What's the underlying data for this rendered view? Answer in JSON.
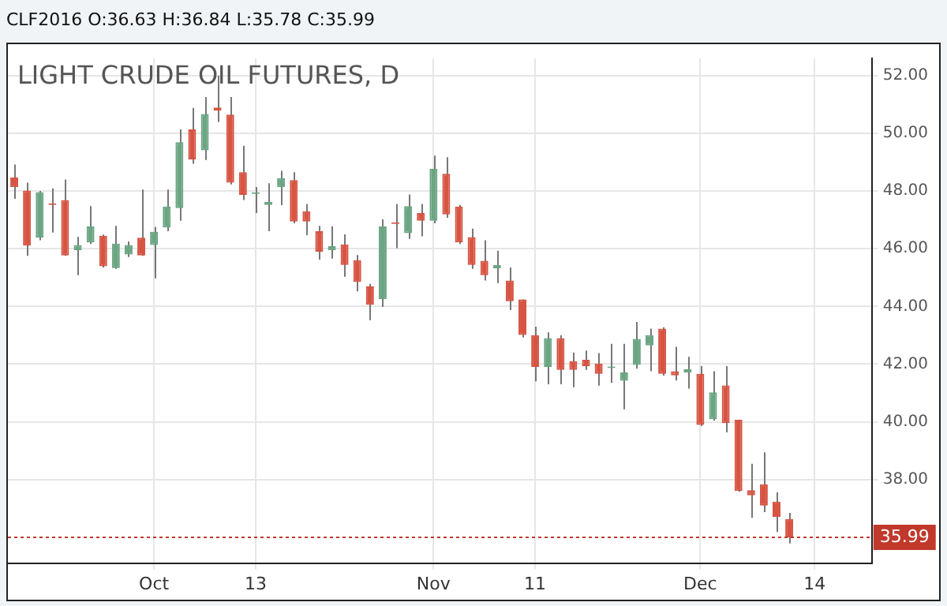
{
  "chart_data": {
    "type": "candlestick",
    "title": "LIGHT CRUDE OIL FUTURES, D",
    "subtitle": "CLF2016 O:36.63 H:36.84 L:35.78 C:35.99",
    "categories": [
      null,
      null,
      null,
      null,
      null,
      null,
      null,
      null,
      null,
      null,
      null,
      "Oct",
      null,
      null,
      null,
      null,
      null,
      null,
      null,
      "13",
      null,
      null,
      null,
      null,
      null,
      null,
      null,
      null,
      null,
      null,
      null,
      null,
      null,
      "Nov",
      null,
      null,
      null,
      null,
      null,
      null,
      null,
      "11",
      null,
      null,
      null,
      null,
      null,
      null,
      null,
      null,
      null,
      null,
      null,
      null,
      "Dec",
      null,
      null,
      null,
      null,
      null,
      null,
      null,
      null,
      "14",
      null,
      null,
      null,
      null
    ],
    "ohlc": [
      [
        48.47,
        48.92,
        47.73,
        48.13
      ],
      [
        48.02,
        48.29,
        45.75,
        46.11
      ],
      [
        46.38,
        48.0,
        46.29,
        47.96
      ],
      [
        47.57,
        48.09,
        46.56,
        47.52
      ],
      [
        47.69,
        48.4,
        45.75,
        45.77
      ],
      [
        45.95,
        46.41,
        45.08,
        46.13
      ],
      [
        46.22,
        47.48,
        46.16,
        46.77
      ],
      [
        46.45,
        46.49,
        45.35,
        45.39
      ],
      [
        45.33,
        46.79,
        45.3,
        46.18
      ],
      [
        45.8,
        46.25,
        45.71,
        46.13
      ],
      [
        46.38,
        48.05,
        45.75,
        45.77
      ],
      [
        46.13,
        46.76,
        44.97,
        46.59
      ],
      [
        46.74,
        48.05,
        46.61,
        47.46
      ],
      [
        47.41,
        50.14,
        46.97,
        49.69
      ],
      [
        50.14,
        50.88,
        48.95,
        49.1
      ],
      [
        49.41,
        51.26,
        49.08,
        50.67
      ],
      [
        50.9,
        52.0,
        50.4,
        50.79
      ],
      [
        50.65,
        51.26,
        48.23,
        48.29
      ],
      [
        48.65,
        49.57,
        47.69,
        47.87
      ],
      [
        47.9,
        48.14,
        47.24,
        47.93
      ],
      [
        47.52,
        48.27,
        46.61,
        47.62
      ],
      [
        48.13,
        48.7,
        47.51,
        48.45
      ],
      [
        48.38,
        48.65,
        46.88,
        46.94
      ],
      [
        47.3,
        47.55,
        46.47,
        46.94
      ],
      [
        46.61,
        46.79,
        45.62,
        45.9
      ],
      [
        45.95,
        46.78,
        45.66,
        46.09
      ],
      [
        46.15,
        46.5,
        45.03,
        45.44
      ],
      [
        45.6,
        45.78,
        44.52,
        44.85
      ],
      [
        44.69,
        44.78,
        43.52,
        44.06
      ],
      [
        44.25,
        47.02,
        43.98,
        46.77
      ],
      [
        46.91,
        47.55,
        46.02,
        46.86
      ],
      [
        46.54,
        47.88,
        46.34,
        47.48
      ],
      [
        47.24,
        47.55,
        46.43,
        46.97
      ],
      [
        46.97,
        49.23,
        46.88,
        48.77
      ],
      [
        48.6,
        49.17,
        47.07,
        47.19
      ],
      [
        47.46,
        47.52,
        46.16,
        46.22
      ],
      [
        46.4,
        46.7,
        45.3,
        45.44
      ],
      [
        45.58,
        46.29,
        44.9,
        45.08
      ],
      [
        45.32,
        45.93,
        44.81,
        45.43
      ],
      [
        44.9,
        45.35,
        43.87,
        44.18
      ],
      [
        44.24,
        44.24,
        42.92,
        43.01
      ],
      [
        43.0,
        43.3,
        41.4,
        41.9
      ],
      [
        41.9,
        43.1,
        41.3,
        42.9
      ],
      [
        42.9,
        43.0,
        41.3,
        41.8
      ],
      [
        42.1,
        42.4,
        41.2,
        41.8
      ],
      [
        42.15,
        42.47,
        41.8,
        41.93
      ],
      [
        42.02,
        42.38,
        41.25,
        41.66
      ],
      [
        41.86,
        42.7,
        41.35,
        41.9
      ],
      [
        41.42,
        42.7,
        40.43,
        41.71
      ],
      [
        41.97,
        43.46,
        41.84,
        42.87
      ],
      [
        42.65,
        43.23,
        41.75,
        43.0
      ],
      [
        43.23,
        43.28,
        41.6,
        41.66
      ],
      [
        41.75,
        42.6,
        41.43,
        41.61
      ],
      [
        41.71,
        42.25,
        41.15,
        41.82
      ],
      [
        41.66,
        41.93,
        39.85,
        39.89
      ],
      [
        40.09,
        41.75,
        40.04,
        41.02
      ],
      [
        41.26,
        41.93,
        39.63,
        39.95
      ],
      [
        40.07,
        40.07,
        37.57,
        37.6
      ],
      [
        37.63,
        38.54,
        36.67,
        37.45
      ],
      [
        37.83,
        38.94,
        36.87,
        37.09
      ],
      [
        37.23,
        37.55,
        36.18,
        36.7
      ],
      [
        36.63,
        36.84,
        35.78,
        35.99
      ],
      null,
      null,
      null,
      null,
      null,
      null
    ],
    "colors": [
      "#d75442",
      "#d75442",
      "#6ba583",
      "#d75442",
      "#d75442",
      "#6ba583",
      "#6ba583",
      "#d75442",
      "#6ba583",
      "#6ba583",
      "#d75442",
      "#6ba583",
      "#6ba583",
      "#6ba583",
      "#d75442",
      "#6ba583",
      "#d75442",
      "#d75442",
      "#d75442",
      "#6ba583",
      "#6ba583",
      "#6ba583",
      "#d75442",
      "#d75442",
      "#d75442",
      "#6ba583",
      "#d75442",
      "#d75442",
      "#d75442",
      "#6ba583",
      "#d75442",
      "#6ba583",
      "#d75442",
      "#6ba583",
      "#d75442",
      "#d75442",
      "#d75442",
      "#d75442",
      "#6ba583",
      "#d75442",
      "#d75442",
      "#d75442",
      "#6ba583",
      "#d75442",
      "#d75442",
      "#d75442",
      "#d75442",
      "#6ba583",
      "#6ba583",
      "#6ba583",
      "#6ba583",
      "#d75442",
      "#d75442",
      "#6ba583",
      "#d75442",
      "#6ba583",
      "#d75442",
      "#d75442",
      "#d75442",
      "#d75442",
      "#d75442",
      "#d75442",
      null,
      null,
      null,
      null,
      null,
      null
    ],
    "ylim": [
      35.1,
      52.6
    ],
    "yticks": [
      {
        "value": 38,
        "label": "38.00"
      },
      {
        "value": 40,
        "label": "40.00"
      },
      {
        "value": 42,
        "label": "42.00"
      },
      {
        "value": 44,
        "label": "44.00"
      },
      {
        "value": 46,
        "label": "46.00"
      },
      {
        "value": 48,
        "label": "48.00"
      },
      {
        "value": 50,
        "label": "50.00"
      },
      {
        "value": 52,
        "label": "52.00"
      }
    ],
    "ref_lines": [
      {
        "axis": "y",
        "value": 35.99,
        "label": "35.99",
        "color": "#c0392b",
        "line_style": "dotted"
      }
    ],
    "grid": true,
    "legend": false
  }
}
